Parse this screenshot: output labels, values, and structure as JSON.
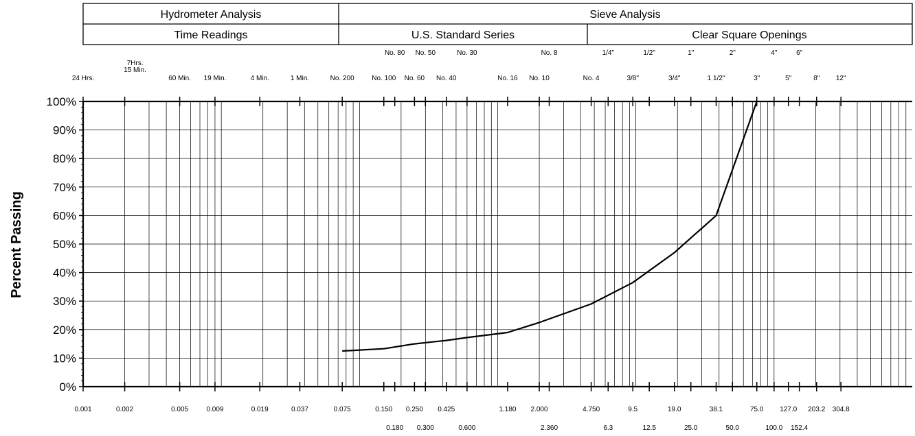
{
  "header": {
    "hydrometer": "Hydrometer Analysis",
    "sieve": "Sieve Analysis",
    "time_readings": "Time Readings",
    "us_standard": "U.S. Standard Series",
    "clear_square": "Clear Square Openings"
  },
  "time_labels": [
    {
      "text": "24 Hrs.",
      "x": 0.001
    },
    {
      "text": "7Hrs.",
      "x": 0.002
    },
    {
      "text": "15 Min.",
      "x": 0.002
    },
    {
      "text": "60 Min.",
      "x": 0.005
    },
    {
      "text": "19 Min.",
      "x": 0.009
    },
    {
      "text": "4 Min.",
      "x": 0.019
    },
    {
      "text": "1 Min.",
      "x": 0.037
    }
  ],
  "sieve_labels_upper": [
    {
      "text": "No. 80",
      "x": 0.18
    },
    {
      "text": "No. 50",
      "x": 0.3
    },
    {
      "text": "No. 30",
      "x": 0.6
    },
    {
      "text": "No. 8",
      "x": 2.36
    },
    {
      "text": "1/4\"",
      "x": 6.3
    },
    {
      "text": "1/2\"",
      "x": 12.5
    },
    {
      "text": "1\"",
      "x": 25.0
    },
    {
      "text": "2\"",
      "x": 50.0
    },
    {
      "text": "4\"",
      "x": 100.0
    },
    {
      "text": "6\"",
      "x": 152.4
    }
  ],
  "sieve_labels_lower": [
    {
      "text": "No. 200",
      "x": 0.075
    },
    {
      "text": "No. 100",
      "x": 0.15
    },
    {
      "text": "No. 60",
      "x": 0.25
    },
    {
      "text": "No. 40",
      "x": 0.425
    },
    {
      "text": "No. 16",
      "x": 1.18
    },
    {
      "text": "No. 10",
      "x": 2.0
    },
    {
      "text": "No. 4",
      "x": 4.75
    },
    {
      "text": "3/8\"",
      "x": 9.5
    },
    {
      "text": "3/4\"",
      "x": 19.0
    },
    {
      "text": "1 1/2\"",
      "x": 38.1
    },
    {
      "text": "3\"",
      "x": 75.0
    },
    {
      "text": "5\"",
      "x": 127.0
    },
    {
      "text": "8\"",
      "x": 203.2
    },
    {
      "text": "12\"",
      "x": 304.8
    }
  ],
  "x_labels_row1": [
    {
      "text": "0.001",
      "x": 0.001
    },
    {
      "text": "0.002",
      "x": 0.002
    },
    {
      "text": "0.005",
      "x": 0.005
    },
    {
      "text": "0.009",
      "x": 0.009
    },
    {
      "text": "0.019",
      "x": 0.019
    },
    {
      "text": "0.037",
      "x": 0.037
    },
    {
      "text": "0.075",
      "x": 0.075
    },
    {
      "text": "0.150",
      "x": 0.15
    },
    {
      "text": "0.250",
      "x": 0.25
    },
    {
      "text": "0.425",
      "x": 0.425
    },
    {
      "text": "1.180",
      "x": 1.18
    },
    {
      "text": "2.000",
      "x": 2.0
    },
    {
      "text": "4.750",
      "x": 4.75
    },
    {
      "text": "9.5",
      "x": 9.5
    },
    {
      "text": "19.0",
      "x": 19.0
    },
    {
      "text": "38.1",
      "x": 38.1
    },
    {
      "text": "75.0",
      "x": 75.0
    },
    {
      "text": "127.0",
      "x": 127.0
    },
    {
      "text": "203.2",
      "x": 203.2
    },
    {
      "text": "304.8",
      "x": 304.8
    }
  ],
  "x_labels_row2": [
    {
      "text": "0.180",
      "x": 0.18
    },
    {
      "text": "0.300",
      "x": 0.3
    },
    {
      "text": "0.600",
      "x": 0.6
    },
    {
      "text": "2.360",
      "x": 2.36
    },
    {
      "text": "6.3",
      "x": 6.3
    },
    {
      "text": "12.5",
      "x": 12.5
    },
    {
      "text": "25.0",
      "x": 25.0
    },
    {
      "text": "50.0",
      "x": 50.0
    },
    {
      "text": "100.0",
      "x": 100.0
    },
    {
      "text": "152.4",
      "x": 152.4
    }
  ],
  "chart_data": {
    "type": "line",
    "xscale": "log",
    "ylabel": "Percent Passing",
    "xlim": [
      0.001,
      1000
    ],
    "ylim": [
      0,
      100
    ],
    "y_ticks": [
      0,
      10,
      20,
      30,
      40,
      50,
      60,
      70,
      80,
      90,
      100
    ],
    "y_tick_labels": [
      "0%",
      "10%",
      "20%",
      "30%",
      "40%",
      "50%",
      "60%",
      "70%",
      "80%",
      "90%",
      "100%"
    ],
    "grid": true,
    "series": [
      {
        "x": [
          0.075,
          0.15,
          0.25,
          0.425,
          0.6,
          1.18,
          2.0,
          4.75,
          9.5,
          19.0,
          38.1,
          75.0
        ],
        "y": [
          12.5,
          13.3,
          15.0,
          16.2,
          17.2,
          19.0,
          22.5,
          29.0,
          36.5,
          47.0,
          60.0,
          100.0
        ]
      }
    ]
  },
  "style": {
    "line_color": "#000000",
    "grid_color": "#000000",
    "background": "#ffffff"
  }
}
